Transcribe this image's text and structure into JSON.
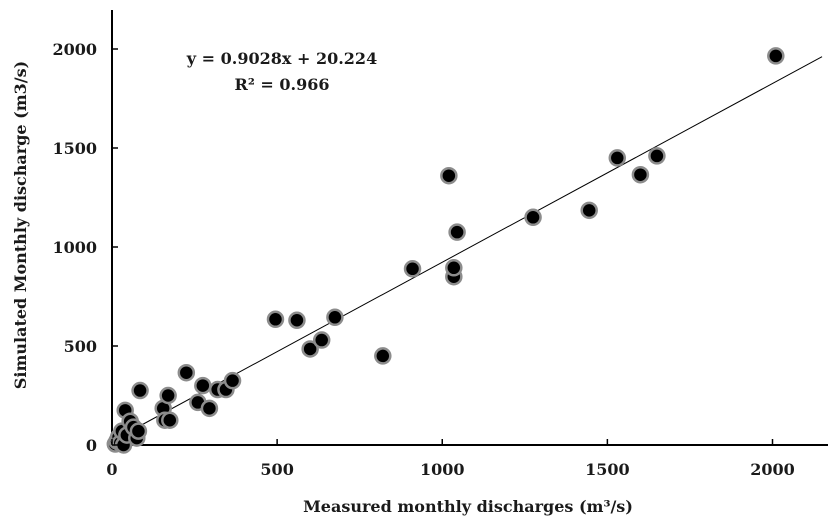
{
  "chart_data": {
    "type": "scatter",
    "xlabel": "Measured monthly discharges (m³/s)",
    "ylabel": "Simulated Monthly discharge (m3/s)",
    "xlim": [
      0,
      2150
    ],
    "ylim": [
      0,
      2150
    ],
    "x_ticks": [
      "0",
      "500",
      "1000",
      "1500",
      "2000"
    ],
    "y_ticks": [
      "0",
      "500",
      "1000",
      "1500",
      "2000"
    ],
    "grid": false,
    "equation": "y = 0.9028x + 20.224",
    "r_squared": "R² = 0.966",
    "trendline": {
      "slope": 0.9028,
      "intercept": 20.224
    },
    "marker_color": "#000000",
    "marker_edge_color": "#8c8c8c",
    "trendline_color": "#000000",
    "points": [
      {
        "x": 10,
        "y": 5
      },
      {
        "x": 15,
        "y": 20
      },
      {
        "x": 20,
        "y": 40
      },
      {
        "x": 25,
        "y": 10
      },
      {
        "x": 30,
        "y": 70
      },
      {
        "x": 35,
        "y": 0
      },
      {
        "x": 40,
        "y": 175
      },
      {
        "x": 45,
        "y": 50
      },
      {
        "x": 55,
        "y": 120
      },
      {
        "x": 65,
        "y": 90
      },
      {
        "x": 75,
        "y": 35
      },
      {
        "x": 80,
        "y": 70
      },
      {
        "x": 85,
        "y": 275
      },
      {
        "x": 155,
        "y": 185
      },
      {
        "x": 160,
        "y": 125
      },
      {
        "x": 170,
        "y": 250
      },
      {
        "x": 175,
        "y": 125
      },
      {
        "x": 225,
        "y": 365
      },
      {
        "x": 260,
        "y": 215
      },
      {
        "x": 275,
        "y": 300
      },
      {
        "x": 295,
        "y": 185
      },
      {
        "x": 320,
        "y": 280
      },
      {
        "x": 345,
        "y": 280
      },
      {
        "x": 365,
        "y": 325
      },
      {
        "x": 495,
        "y": 635
      },
      {
        "x": 560,
        "y": 630
      },
      {
        "x": 600,
        "y": 485
      },
      {
        "x": 635,
        "y": 530
      },
      {
        "x": 675,
        "y": 645
      },
      {
        "x": 820,
        "y": 450
      },
      {
        "x": 910,
        "y": 890
      },
      {
        "x": 1020,
        "y": 1360
      },
      {
        "x": 1035,
        "y": 850
      },
      {
        "x": 1035,
        "y": 895
      },
      {
        "x": 1045,
        "y": 1075
      },
      {
        "x": 1275,
        "y": 1150
      },
      {
        "x": 1445,
        "y": 1185
      },
      {
        "x": 1530,
        "y": 1450
      },
      {
        "x": 1600,
        "y": 1365
      },
      {
        "x": 1650,
        "y": 1460
      },
      {
        "x": 2010,
        "y": 1965
      }
    ]
  }
}
